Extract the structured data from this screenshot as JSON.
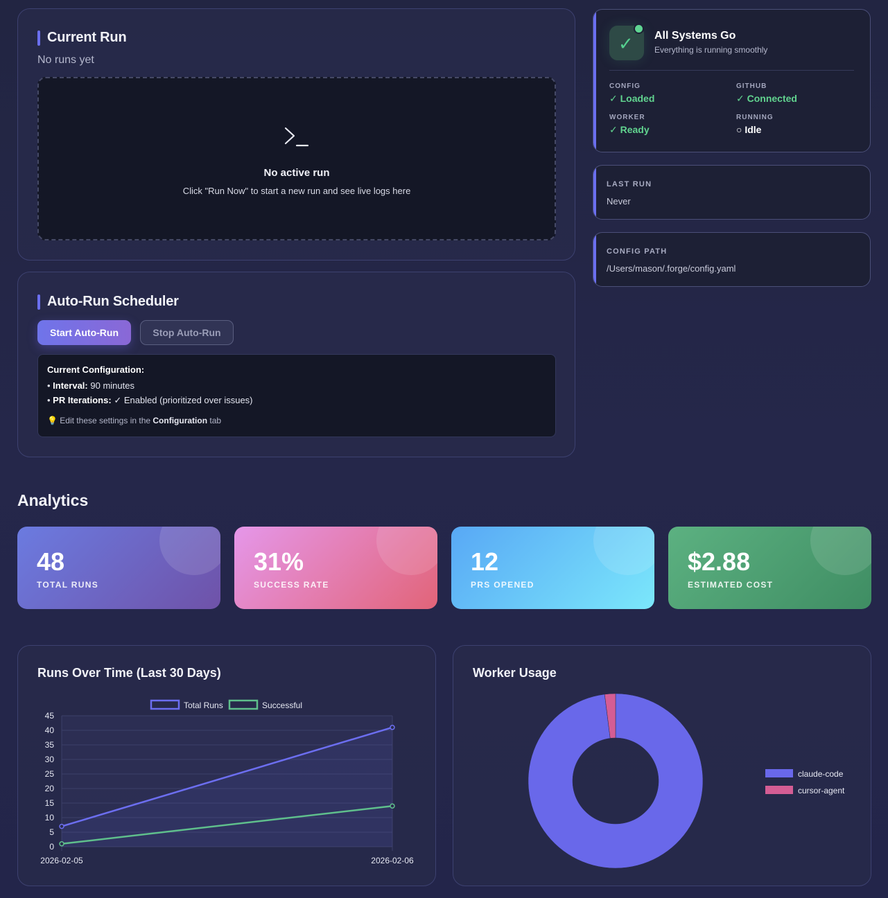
{
  "current_run": {
    "title": "Current Run",
    "subtitle": "No runs yet",
    "terminal_icon": "terminal-icon",
    "empty_title": "No active run",
    "empty_hint": "Click \"Run Now\" to start a new run and see live logs here"
  },
  "scheduler": {
    "title": "Auto-Run Scheduler",
    "start_label": "Start Auto-Run",
    "stop_label": "Stop Auto-Run",
    "config_title": "Current Configuration:",
    "interval_label": "Interval:",
    "interval_value": "90 minutes",
    "pr_label": "PR Iterations:",
    "pr_value": "✓ Enabled (prioritized over issues)",
    "tip_prefix": "Edit these settings in the",
    "tip_link": "Configuration",
    "tip_suffix": "tab",
    "tip_icon": "lightbulb-icon"
  },
  "status": {
    "title": "All Systems Go",
    "subtitle": "Everything is running smoothly",
    "items": [
      {
        "label": "CONFIG",
        "value": "✓ Loaded"
      },
      {
        "label": "GITHUB",
        "value": "✓ Connected"
      },
      {
        "label": "WORKER",
        "value": "✓ Ready"
      },
      {
        "label": "RUNNING",
        "value": "○ Idle"
      }
    ],
    "colors": {
      "ok": "#61d38f",
      "accent": "#6b6ff0"
    }
  },
  "last_run": {
    "label": "LAST RUN",
    "value": "Never"
  },
  "config_path": {
    "label": "CONFIG PATH",
    "value": "/Users/mason/.forge/config.yaml"
  },
  "analytics": {
    "title": "Analytics",
    "kpis": [
      {
        "value": "48",
        "label": "TOTAL RUNS"
      },
      {
        "value": "31%",
        "label": "SUCCESS RATE"
      },
      {
        "value": "12",
        "label": "PRS OPENED"
      },
      {
        "value": "$2.88",
        "label": "ESTIMATED COST"
      }
    ]
  },
  "chart_data": [
    {
      "type": "line",
      "title": "Runs Over Time (Last 30 Days)",
      "x": [
        "2026-02-05",
        "2026-02-06"
      ],
      "series": [
        {
          "name": "Total Runs",
          "values": [
            7,
            41
          ],
          "color": "#6c6ef0"
        },
        {
          "name": "Successful",
          "values": [
            1,
            14
          ],
          "color": "#5fbf8c"
        }
      ],
      "ylim": [
        0,
        45
      ],
      "yticks": [
        0,
        5,
        10,
        15,
        20,
        25,
        30,
        35,
        40,
        45
      ],
      "grid": true,
      "legend": "top"
    },
    {
      "type": "pie",
      "title": "Worker Usage",
      "categories": [
        "claude-code",
        "cursor-agent"
      ],
      "values": [
        98,
        2
      ],
      "colors": [
        "#6968ea",
        "#d45d94"
      ],
      "legend": "right"
    }
  ]
}
